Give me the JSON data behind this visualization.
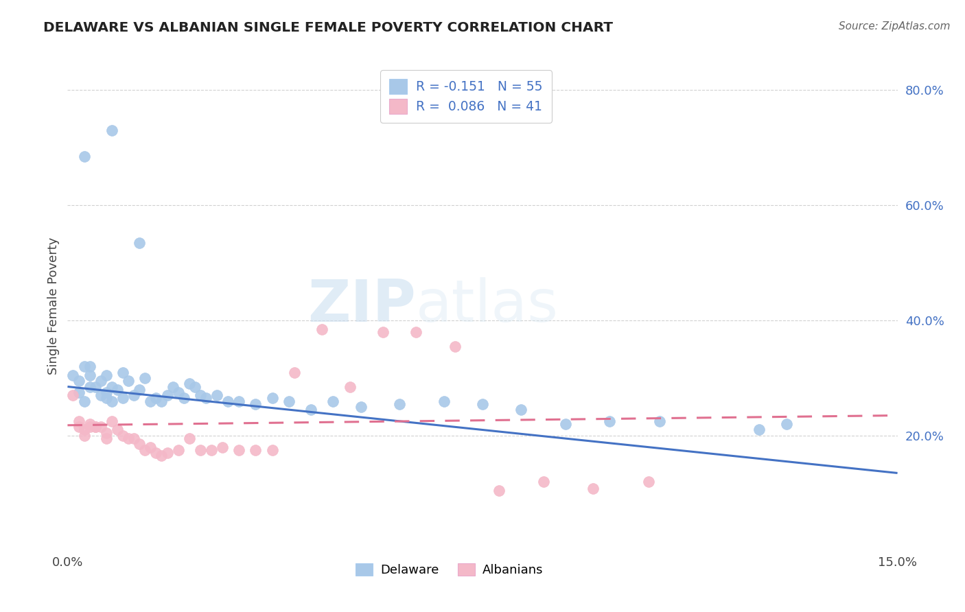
{
  "title": "DELAWARE VS ALBANIAN SINGLE FEMALE POVERTY CORRELATION CHART",
  "source_text": "Source: ZipAtlas.com",
  "ylabel": "Single Female Poverty",
  "xlim": [
    0.0,
    0.15
  ],
  "ylim": [
    0.0,
    0.85
  ],
  "ytick_vals": [
    0.2,
    0.4,
    0.6,
    0.8
  ],
  "ytick_labels": [
    "20.0%",
    "40.0%",
    "60.0%",
    "80.0%"
  ],
  "xtick_vals": [
    0.0,
    0.15
  ],
  "xtick_labels": [
    "0.0%",
    "15.0%"
  ],
  "legend_entry1": "R = -0.151   N = 55",
  "legend_entry2": "R =  0.086   N = 41",
  "legend_label1": "Delaware",
  "legend_label2": "Albanians",
  "color_delaware": "#a8c8e8",
  "color_albanian": "#f4b8c8",
  "color_line_delaware": "#4472c4",
  "color_line_albanian": "#e07090",
  "watermark": "ZIPatlas",
  "del_line_x": [
    0.0,
    0.15
  ],
  "del_line_y": [
    0.285,
    0.135
  ],
  "alb_line_x": [
    0.0,
    0.15
  ],
  "alb_line_y": [
    0.218,
    0.235
  ],
  "delaware_x": [
    0.003,
    0.008,
    0.013,
    0.001,
    0.002,
    0.002,
    0.003,
    0.003,
    0.004,
    0.004,
    0.004,
    0.005,
    0.006,
    0.006,
    0.007,
    0.007,
    0.007,
    0.008,
    0.008,
    0.009,
    0.01,
    0.01,
    0.011,
    0.012,
    0.013,
    0.014,
    0.015,
    0.016,
    0.017,
    0.018,
    0.019,
    0.02,
    0.021,
    0.022,
    0.023,
    0.024,
    0.025,
    0.027,
    0.029,
    0.031,
    0.034,
    0.037,
    0.04,
    0.044,
    0.048,
    0.053,
    0.06,
    0.068,
    0.075,
    0.082,
    0.09,
    0.098,
    0.107,
    0.125,
    0.13
  ],
  "delaware_y": [
    0.685,
    0.73,
    0.535,
    0.305,
    0.295,
    0.275,
    0.32,
    0.26,
    0.285,
    0.305,
    0.32,
    0.285,
    0.27,
    0.295,
    0.265,
    0.275,
    0.305,
    0.26,
    0.285,
    0.28,
    0.265,
    0.31,
    0.295,
    0.27,
    0.28,
    0.3,
    0.26,
    0.265,
    0.26,
    0.27,
    0.285,
    0.275,
    0.265,
    0.29,
    0.285,
    0.27,
    0.265,
    0.27,
    0.26,
    0.26,
    0.255,
    0.265,
    0.26,
    0.245,
    0.26,
    0.25,
    0.255,
    0.26,
    0.255,
    0.245,
    0.22,
    0.225,
    0.225,
    0.21,
    0.22
  ],
  "albanian_x": [
    0.001,
    0.002,
    0.002,
    0.003,
    0.003,
    0.004,
    0.004,
    0.005,
    0.005,
    0.006,
    0.007,
    0.007,
    0.008,
    0.009,
    0.01,
    0.011,
    0.012,
    0.013,
    0.014,
    0.015,
    0.016,
    0.017,
    0.018,
    0.02,
    0.022,
    0.024,
    0.026,
    0.028,
    0.031,
    0.034,
    0.037,
    0.041,
    0.046,
    0.051,
    0.057,
    0.063,
    0.07,
    0.078,
    0.086,
    0.095,
    0.105
  ],
  "albanian_y": [
    0.27,
    0.225,
    0.215,
    0.2,
    0.21,
    0.215,
    0.22,
    0.215,
    0.215,
    0.215,
    0.195,
    0.205,
    0.225,
    0.21,
    0.2,
    0.195,
    0.195,
    0.185,
    0.175,
    0.18,
    0.17,
    0.165,
    0.17,
    0.175,
    0.195,
    0.175,
    0.175,
    0.18,
    0.175,
    0.175,
    0.175,
    0.31,
    0.385,
    0.285,
    0.38,
    0.38,
    0.355,
    0.105,
    0.12,
    0.108,
    0.12
  ]
}
